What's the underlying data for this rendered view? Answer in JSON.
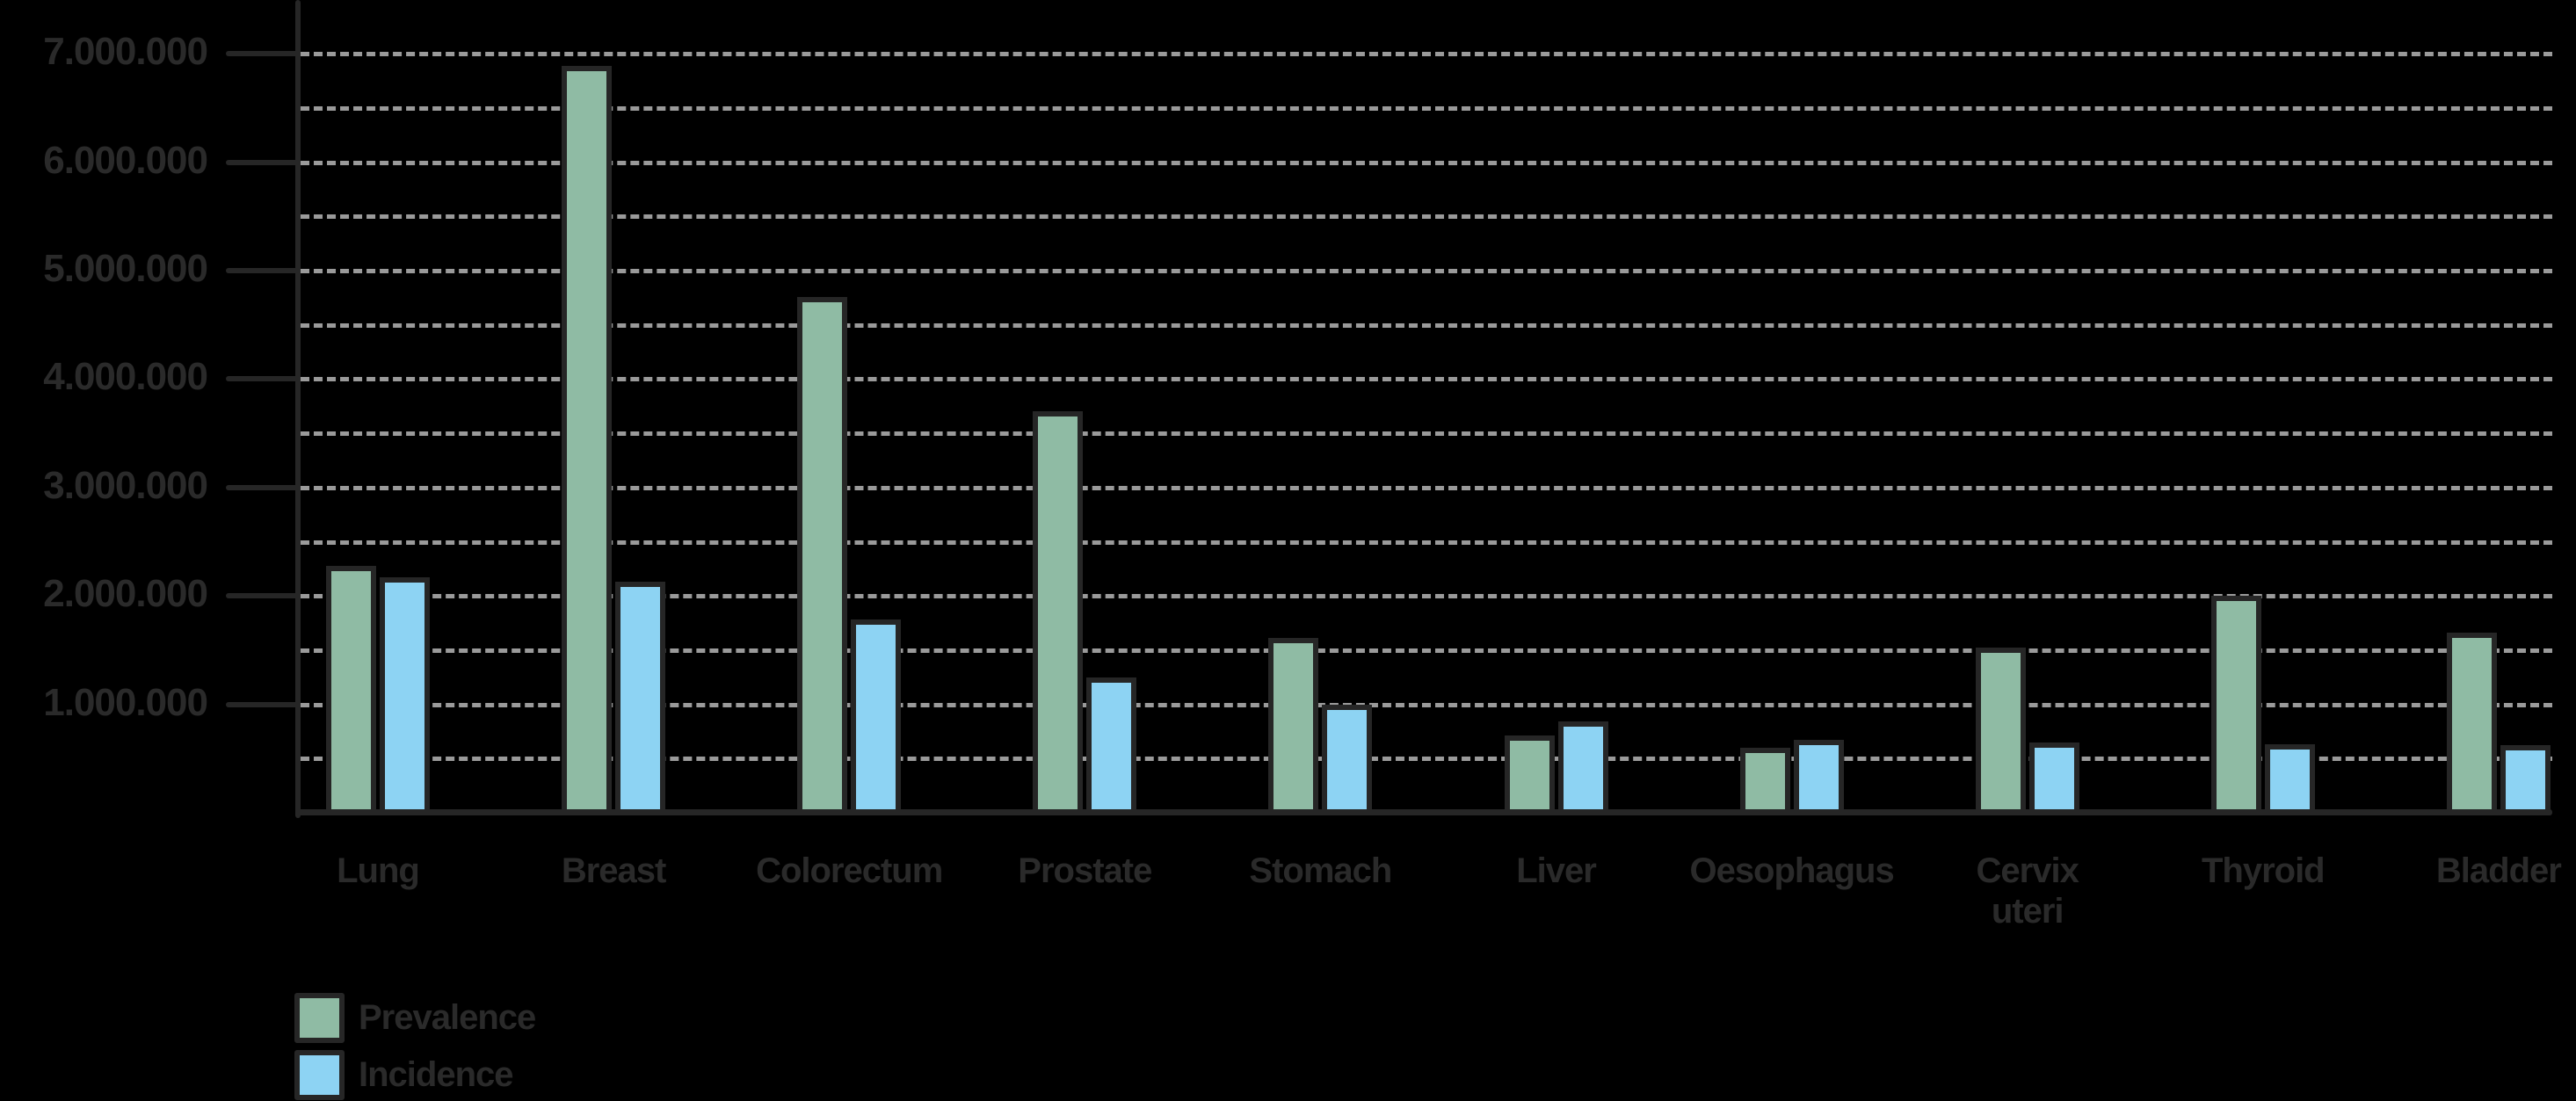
{
  "chart_data": {
    "type": "bar",
    "title": "",
    "xlabel": "",
    "ylabel": "",
    "ylim": [
      0,
      7000000
    ],
    "yticks": [
      1000000,
      2000000,
      3000000,
      4000000,
      5000000,
      6000000,
      7000000
    ],
    "ytick_labels": [
      "1.000.000",
      "2.000.000",
      "3.000.000",
      "4.000.000",
      "5.000.000",
      "6.000.000",
      "7.000.000"
    ],
    "grid": {
      "on": true,
      "style": "dashed",
      "step": 500000
    },
    "legend_position": "bottom-left",
    "categories": [
      "Lung",
      "Breast",
      "Colorectum",
      "Prostate",
      "Stomach",
      "Liver",
      "Oesophagus",
      "Cervix uteri",
      "Thyroid",
      "Bladder"
    ],
    "category_labels": [
      "Lung",
      "Breast",
      "Colorectum",
      "Prostate",
      "Stomach",
      "Liver",
      "Oesophagus",
      "Cervix\nuteri",
      "Thyroid",
      "Bladder"
    ],
    "series": [
      {
        "name": "Prevalence",
        "color": "#8fbba4",
        "values": [
          2280000,
          6890000,
          4760000,
          3700000,
          1610000,
          710000,
          600000,
          1520000,
          2000000,
          1660000
        ]
      },
      {
        "name": "Incidence",
        "color": "#8dd3f3",
        "values": [
          2170000,
          2130000,
          1780000,
          1250000,
          1000000,
          840000,
          670000,
          650000,
          630000,
          620000
        ]
      }
    ]
  },
  "legend": {
    "items": [
      {
        "label": "Prevalence",
        "color": "#8fbba4"
      },
      {
        "label": "Incidence",
        "color": "#8dd3f3"
      }
    ]
  },
  "colors": {
    "background": "#000000",
    "axis": "#262626",
    "grid": "#9a9a9a",
    "text": "#2a2a2a"
  }
}
